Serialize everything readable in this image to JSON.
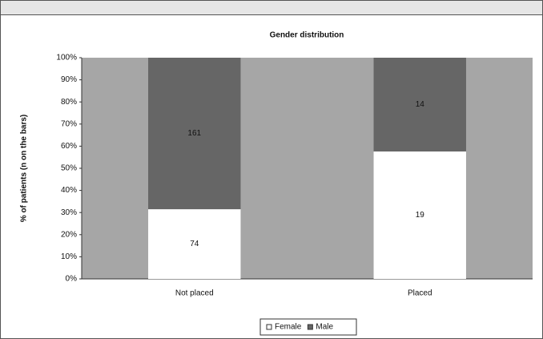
{
  "chart_data": {
    "type": "stacked_bar_percent",
    "title": "Gender distribution",
    "ylabel": "% of patients (n on the bars)",
    "categories": [
      "Not placed",
      "Placed"
    ],
    "series": [
      {
        "name": "Female",
        "color": "#ffffff",
        "values": [
          31.5,
          57.6
        ],
        "counts": [
          74,
          19
        ]
      },
      {
        "name": "Male",
        "color": "#666666",
        "values": [
          68.5,
          42.4
        ],
        "counts": [
          161,
          14
        ]
      }
    ],
    "ylim": [
      0,
      100
    ],
    "yticks": [
      {
        "value": 0,
        "label": "0%"
      },
      {
        "value": 10,
        "label": "10%"
      },
      {
        "value": 20,
        "label": "20%"
      },
      {
        "value": 30,
        "label": "30%"
      },
      {
        "value": 40,
        "label": "40%"
      },
      {
        "value": 50,
        "label": "50%"
      },
      {
        "value": 60,
        "label": "60%"
      },
      {
        "value": 70,
        "label": "70%"
      },
      {
        "value": 80,
        "label": "80%"
      },
      {
        "value": 90,
        "label": "90%"
      },
      {
        "value": 100,
        "label": "100%"
      }
    ],
    "plot_background": "#a6a6a6",
    "legend": "bottom"
  }
}
